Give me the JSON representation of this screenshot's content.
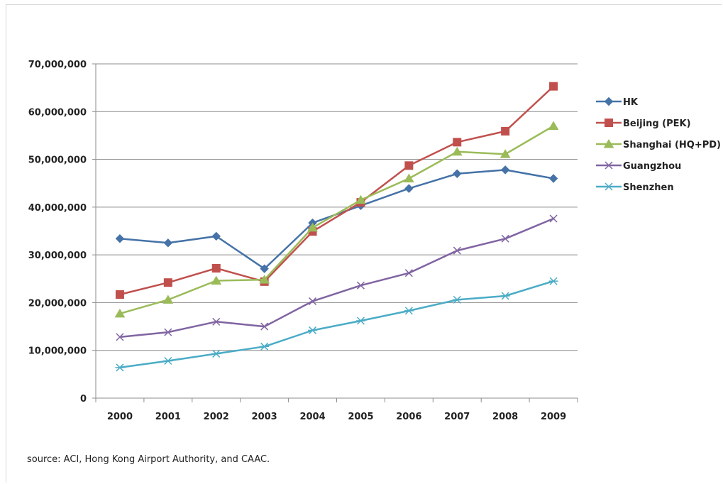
{
  "chart_data": {
    "type": "line",
    "title": "",
    "xlabel": "",
    "ylabel": "",
    "categories": [
      "2000",
      "2001",
      "2002",
      "2003",
      "2004",
      "2005",
      "2006",
      "2007",
      "2008",
      "2009"
    ],
    "ylim": [
      0,
      70000000
    ],
    "yticks": [
      0,
      10000000,
      20000000,
      30000000,
      40000000,
      50000000,
      60000000,
      70000000
    ],
    "ytick_labels": [
      "0",
      "10,000,000",
      "20,000,000",
      "30,000,000",
      "40,000,000",
      "50,000,000",
      "60,000,000",
      "70,000,000"
    ],
    "grid": true,
    "legend_position": "right",
    "series": [
      {
        "name": "HK",
        "color": "#4572A7",
        "marker": "diamond",
        "values": [
          33400000,
          32500000,
          33900000,
          27100000,
          36700000,
          40300000,
          43900000,
          47000000,
          47800000,
          46000000
        ]
      },
      {
        "name": "Beijing (PEK)",
        "color": "#C0504D",
        "marker": "square",
        "values": [
          21700000,
          24200000,
          27200000,
          24400000,
          34900000,
          41000000,
          48700000,
          53600000,
          55900000,
          65300000
        ]
      },
      {
        "name": "Shanghai (HQ+PD)",
        "color": "#9BBB59",
        "marker": "triangle",
        "values": [
          17700000,
          20600000,
          24600000,
          24800000,
          35700000,
          41500000,
          46000000,
          51600000,
          51100000,
          57000000
        ]
      },
      {
        "name": "Guangzhou",
        "color": "#8064A2",
        "marker": "x",
        "values": [
          12800000,
          13800000,
          16000000,
          15000000,
          20300000,
          23600000,
          26200000,
          30900000,
          33400000,
          37600000
        ]
      },
      {
        "name": "Shenzhen",
        "color": "#4BACC6",
        "marker": "star",
        "values": [
          6400000,
          7800000,
          9300000,
          10800000,
          14200000,
          16200000,
          18300000,
          20600000,
          21400000,
          24500000
        ]
      }
    ]
  },
  "source_text": "source: ACI, Hong Kong Airport Authority, and CAAC."
}
